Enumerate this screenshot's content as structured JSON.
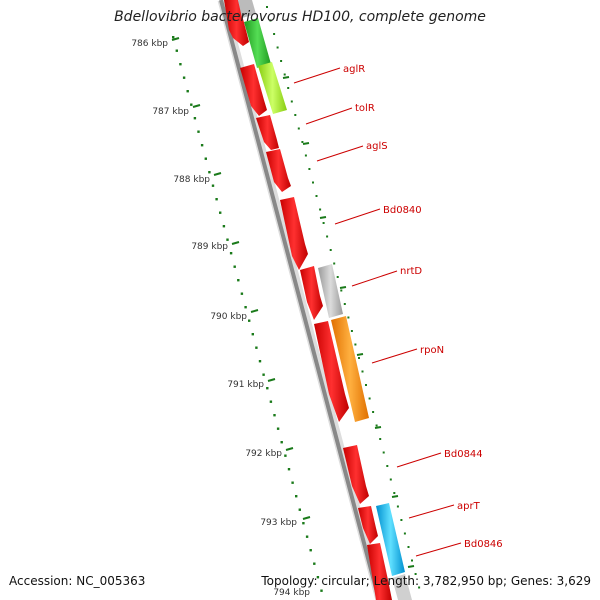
{
  "title": "Bdellovibrio bacteriovorus HD100, complete genome",
  "accession": "Accession: NC_005363",
  "topology": "Topology: circular; Length: 3,782,950 bp; Genes: 3,629",
  "ticks": [
    "786 kbp",
    "787 kbp",
    "788 kbp",
    "789 kbp",
    "790 kbp",
    "791 kbp",
    "792 kbp",
    "793 kbp",
    "794 kbp"
  ],
  "gene_labels": [
    "aglR",
    "tolR",
    "aglS",
    "Bd0840",
    "nrtD",
    "rpoN",
    "Bd0844",
    "aprT",
    "Bd0846"
  ],
  "colors": {
    "forward_genes": "#ff0000",
    "backbone": "#888888",
    "labels": "#cc0000",
    "ticks": "#1a7a1a",
    "green": "#33bb33",
    "lime": "#aaf030",
    "grey": "#c0c0c0",
    "orange": "#ff9910",
    "cyan": "#10c0f0"
  }
}
